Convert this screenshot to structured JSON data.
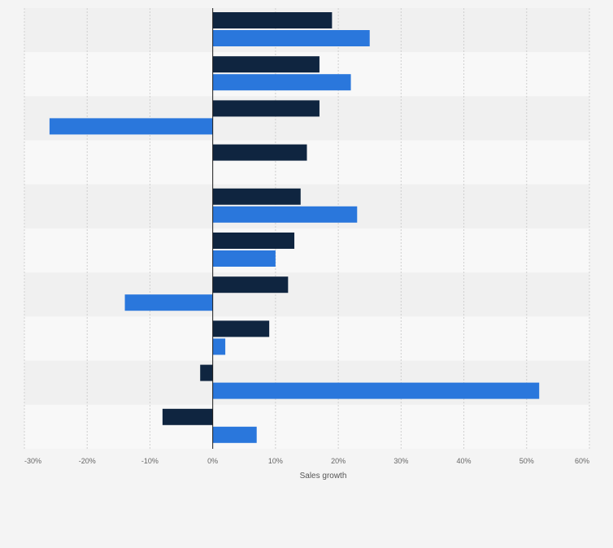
{
  "chart_data": {
    "type": "bar",
    "orientation": "horizontal",
    "title": "",
    "xlabel": "Sales growth",
    "ylabel": "",
    "categories": [
      "",
      "",
      "",
      "",
      "",
      "",
      "",
      "",
      "",
      ""
    ],
    "series": [
      {
        "values": [
          19,
          17,
          17,
          15,
          14,
          13,
          12,
          9,
          -2,
          -8
        ]
      },
      {
        "values": [
          25,
          22,
          -26,
          0,
          23,
          10,
          -14,
          2,
          52,
          7
        ]
      }
    ],
    "xlim": [
      -30,
      60
    ],
    "xticks": [
      -30,
      -20,
      -10,
      0,
      10,
      20,
      30,
      40,
      50,
      60
    ],
    "xtick_labels": [
      "-30%",
      "-20%",
      "-10%",
      "0%",
      "10%",
      "20%",
      "30%",
      "40%",
      "50%",
      "60%"
    ],
    "grid": "vertical-dashed",
    "legend": "none",
    "colors": {
      "series_1": "#0f2540",
      "series_2": "#2a77dc",
      "band_dark": "#f0f0f0",
      "band_light": "#f8f8f8",
      "background": "#f4f4f4"
    }
  }
}
